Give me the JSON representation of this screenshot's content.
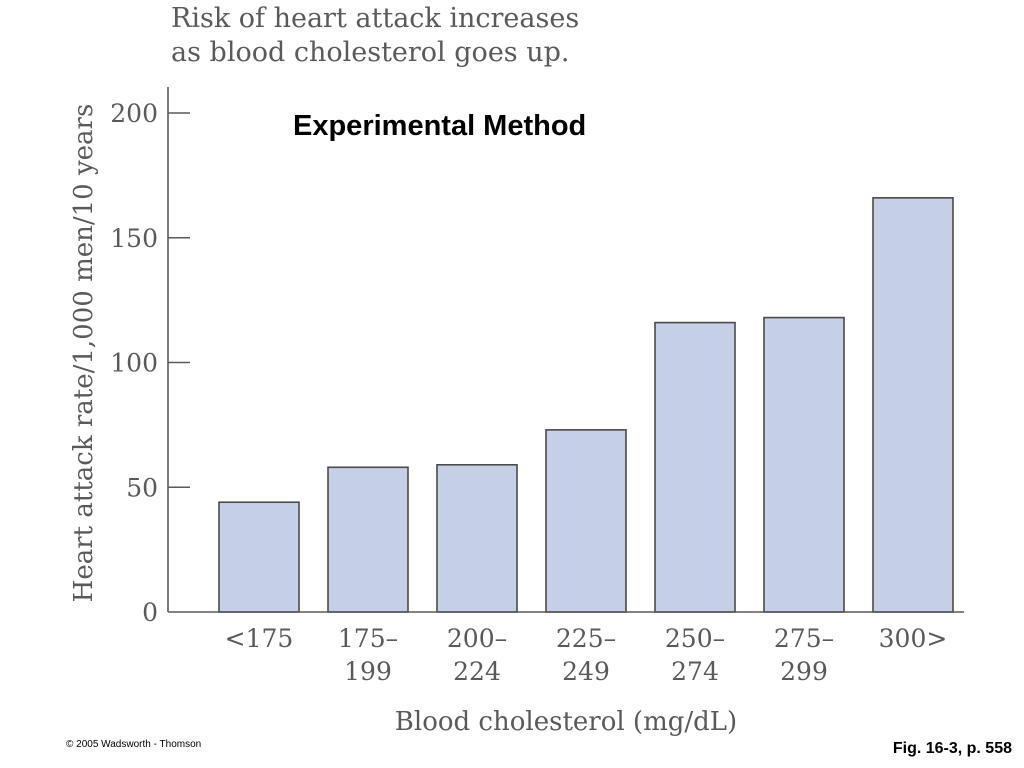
{
  "slide": {
    "heading": "Experimental Method",
    "copyright": "© 2005 Wadsworth - Thomson",
    "figure_ref": "Fig. 16-3, p. 558"
  },
  "chart_data": {
    "type": "bar",
    "title_lines": [
      "Risk of heart attack increases",
      "as blood cholesterol goes up."
    ],
    "xlabel": "Blood cholesterol (mg/dL)",
    "ylabel": "Heart attack rate/1,000 men/10 years",
    "ylim": [
      0,
      200
    ],
    "yticks": [
      0,
      50,
      100,
      150,
      200
    ],
    "categories": [
      [
        "<175"
      ],
      [
        "175–",
        "199"
      ],
      [
        "200–",
        "224"
      ],
      [
        "225–",
        "249"
      ],
      [
        "250–",
        "274"
      ],
      [
        "275–",
        "299"
      ],
      [
        "300>"
      ]
    ],
    "values": [
      44,
      58,
      59,
      73,
      116,
      118,
      166
    ],
    "grid": false,
    "bar_color": "#c5cfe6",
    "bar_edge_color": "#4a4a4a",
    "axis_color": "#5a5a5a",
    "text_color": "#5a5a5a"
  }
}
